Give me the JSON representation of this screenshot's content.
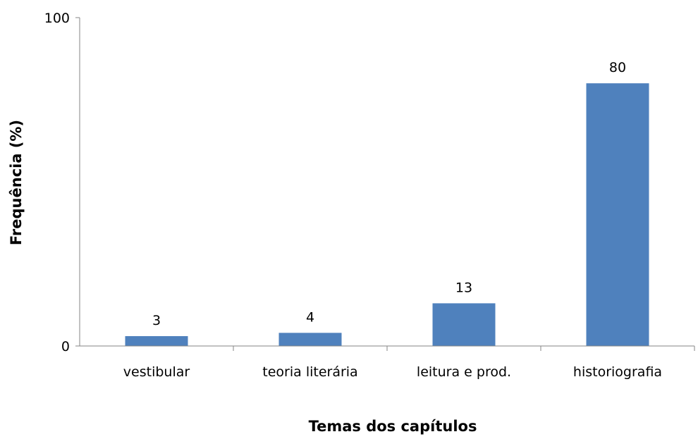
{
  "chart_data": {
    "type": "bar",
    "title": "",
    "xlabel": "Temas dos capítulos",
    "ylabel": "Frequência (%)",
    "ylim": [
      0,
      100
    ],
    "yticks": [
      0,
      100
    ],
    "categories": [
      "vestibular",
      "teoria literária",
      "leitura e prod.",
      "historiografia"
    ],
    "values": [
      3,
      4,
      13,
      80
    ],
    "data_labels": [
      "3",
      "4",
      "13",
      "80"
    ],
    "bar_color": "#4F81BD",
    "axis_color": "#868686",
    "grid": false,
    "legend": "none"
  }
}
